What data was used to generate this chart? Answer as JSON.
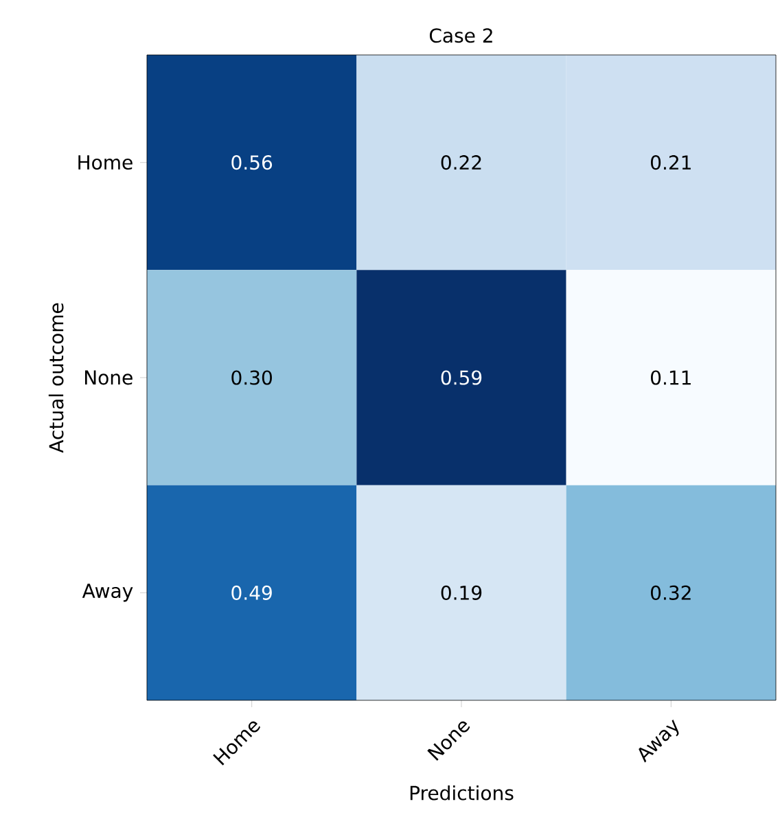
{
  "chart_data": {
    "type": "heatmap",
    "title": "Case 2",
    "xlabel": "Predictions",
    "ylabel": "Actual outcome",
    "categories": [
      "Home",
      "None",
      "Away"
    ],
    "y_categories": [
      "Home",
      "None",
      "Away"
    ],
    "cells": [
      [
        0.56,
        0.22,
        0.21
      ],
      [
        0.3,
        0.59,
        0.11
      ],
      [
        0.49,
        0.19,
        0.32
      ]
    ],
    "cell_labels": [
      [
        "0.56",
        "0.22",
        "0.21"
      ],
      [
        "0.30",
        "0.59",
        "0.11"
      ],
      [
        "0.49",
        "0.19",
        "0.32"
      ]
    ]
  }
}
